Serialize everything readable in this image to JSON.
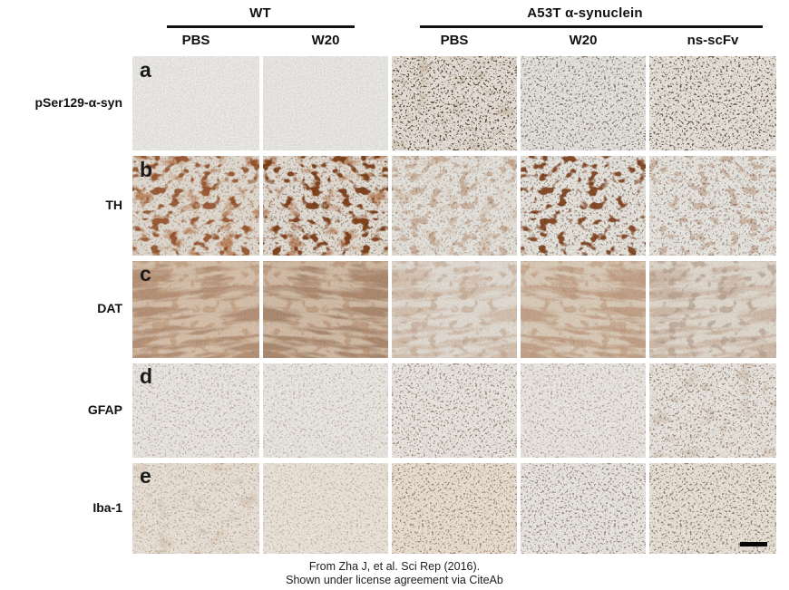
{
  "figure": {
    "groups": [
      {
        "label": "WT"
      },
      {
        "label": "A53T α-synuclein"
      }
    ],
    "column_labels": [
      "PBS",
      "W20",
      "PBS",
      "W20",
      "ns-scFv"
    ],
    "column_keys": [
      "wt-pbs",
      "wt-w20",
      "a53t-pbs",
      "a53t-w20",
      "a53t-ns-scfv"
    ],
    "stain_colors": {
      "dab_brown": "#8f4a20",
      "dark_brown": "#6d370f",
      "background_gray": "#d8d7d3",
      "tan": "#d9c3a8"
    },
    "rows": [
      {
        "letter": "a",
        "label": "pSer129-α-syn",
        "cells": [
          {
            "base": "#d8d7d3",
            "layers": [
              {
                "filter": "grain",
                "color": "#bdbab2",
                "opacity": 0.6
              }
            ]
          },
          {
            "base": "#d5d4d0",
            "layers": [
              {
                "filter": "grain",
                "color": "#bdbab2",
                "opacity": 0.6
              }
            ]
          },
          {
            "base": "#cdc1b4",
            "layers": [
              {
                "filter": "grain",
                "color": "#bdbab2",
                "opacity": 0.6
              },
              {
                "filter": "blobs",
                "color": "#b39a7e",
                "opacity": 0.3
              },
              {
                "filter": "specks",
                "color": "#43301f",
                "opacity": 0.8
              }
            ]
          },
          {
            "base": "#cfcac4",
            "layers": [
              {
                "filter": "grain",
                "color": "#bdbab2",
                "opacity": 0.6
              },
              {
                "filter": "specks",
                "color": "#3f332a",
                "opacity": 0.55
              }
            ]
          },
          {
            "base": "#d2c8ba",
            "layers": [
              {
                "filter": "grain",
                "color": "#bdbab2",
                "opacity": 0.6
              },
              {
                "filter": "specks",
                "color": "#3c2c1e",
                "opacity": 0.7
              }
            ]
          }
        ]
      },
      {
        "letter": "b",
        "label": "TH",
        "cells": [
          {
            "base": "#cdc2b3",
            "layers": [
              {
                "filter": "grain",
                "color": "#bdbab2",
                "opacity": 0.5
              },
              {
                "filter": "blobs",
                "color": "#aa5e2d",
                "opacity": 0.65
              },
              {
                "filter": "cells",
                "color": "#8f4a20",
                "opacity": 0.85
              },
              {
                "filter": "specks",
                "color": "#5a3a22",
                "opacity": 0.3
              }
            ]
          },
          {
            "base": "#cfc6b9",
            "layers": [
              {
                "filter": "grain",
                "color": "#bdbab2",
                "opacity": 0.5
              },
              {
                "filter": "blobs",
                "color": "#a65a2a",
                "opacity": 0.6
              },
              {
                "filter": "cells",
                "color": "#77360f",
                "opacity": 0.9
              },
              {
                "filter": "specks",
                "color": "#4a301c",
                "opacity": 0.4
              }
            ]
          },
          {
            "base": "#d3cec6",
            "layers": [
              {
                "filter": "grain",
                "color": "#bdbab2",
                "opacity": 0.55
              },
              {
                "filter": "blobs",
                "color": "#bb9068",
                "opacity": 0.3
              },
              {
                "filter": "cells",
                "color": "#9c653a",
                "opacity": 0.35
              },
              {
                "filter": "specks",
                "color": "#55402c",
                "opacity": 0.3
              }
            ]
          },
          {
            "base": "#d4d0c8",
            "layers": [
              {
                "filter": "grain",
                "color": "#bdbab2",
                "opacity": 0.55
              },
              {
                "filter": "cells",
                "color": "#7b3a16",
                "opacity": 0.9
              },
              {
                "filter": "specks",
                "color": "#46321f",
                "opacity": 0.45
              }
            ]
          },
          {
            "base": "#d7d4cd",
            "layers": [
              {
                "filter": "grain",
                "color": "#bdbab2",
                "opacity": 0.55
              },
              {
                "filter": "cells",
                "color": "#95552c",
                "opacity": 0.3
              },
              {
                "filter": "specks",
                "color": "#4a3420",
                "opacity": 0.4
              }
            ]
          }
        ]
      },
      {
        "letter": "c",
        "label": "DAT",
        "cells": [
          {
            "base": "#bf9d7d",
            "layers": [
              {
                "filter": "fibers",
                "color": "#7c3f16",
                "opacity": 0.8
              },
              {
                "filter": "cells",
                "color": "#93521f",
                "opacity": 0.55
              },
              {
                "filter": "grain",
                "color": "#bdbab2",
                "opacity": 0.4
              }
            ]
          },
          {
            "base": "#b89676",
            "layers": [
              {
                "filter": "fibers",
                "color": "#6d370f",
                "opacity": 0.85
              },
              {
                "filter": "cells",
                "color": "#8a4517",
                "opacity": 0.55
              },
              {
                "filter": "grain",
                "color": "#bdbab2",
                "opacity": 0.4
              }
            ]
          },
          {
            "base": "#cbc2b5",
            "layers": [
              {
                "filter": "fibers",
                "color": "#995b2e",
                "opacity": 0.5
              },
              {
                "filter": "cells",
                "color": "#84471e",
                "opacity": 0.5
              },
              {
                "filter": "grain",
                "color": "#bdbab2",
                "opacity": 0.5
              }
            ]
          },
          {
            "base": "#c2a98c",
            "layers": [
              {
                "filter": "fibers",
                "color": "#8d4b1c",
                "opacity": 0.75
              },
              {
                "filter": "cells",
                "color": "#8f4e1e",
                "opacity": 0.55
              },
              {
                "filter": "grain",
                "color": "#bdbab2",
                "opacity": 0.45
              }
            ]
          },
          {
            "base": "#c8bcab",
            "layers": [
              {
                "filter": "fibers",
                "color": "#8a5128",
                "opacity": 0.55
              },
              {
                "filter": "cells",
                "color": "#653415",
                "opacity": 0.55
              },
              {
                "filter": "grain",
                "color": "#bdbab2",
                "opacity": 0.5
              }
            ]
          }
        ]
      },
      {
        "letter": "d",
        "label": "GFAP",
        "cells": [
          {
            "base": "#dad7d2",
            "layers": [
              {
                "filter": "grain",
                "color": "#bdbab2",
                "opacity": 0.6
              },
              {
                "filter": "specks",
                "color": "#8a6a52",
                "opacity": 0.4
              }
            ]
          },
          {
            "base": "#dbd8d3",
            "layers": [
              {
                "filter": "grain",
                "color": "#bdbab2",
                "opacity": 0.6
              },
              {
                "filter": "specks",
                "color": "#8a6a52",
                "opacity": 0.35
              }
            ]
          },
          {
            "base": "#d8d4cd",
            "layers": [
              {
                "filter": "grain",
                "color": "#bdbab2",
                "opacity": 0.6
              },
              {
                "filter": "specks",
                "color": "#6b4e36",
                "opacity": 0.55
              }
            ]
          },
          {
            "base": "#dad6d0",
            "layers": [
              {
                "filter": "grain",
                "color": "#bdbab2",
                "opacity": 0.6
              },
              {
                "filter": "specks",
                "color": "#7a5a40",
                "opacity": 0.4
              }
            ]
          },
          {
            "base": "#d6d0c8",
            "layers": [
              {
                "filter": "grain",
                "color": "#bdbab2",
                "opacity": 0.6
              },
              {
                "filter": "blobs",
                "color": "#b49a7d",
                "opacity": 0.3
              },
              {
                "filter": "specks",
                "color": "#6b4c34",
                "opacity": 0.55
              }
            ]
          }
        ]
      },
      {
        "letter": "e",
        "label": "Iba-1",
        "cells": [
          {
            "base": "#d8c9b6",
            "layers": [
              {
                "filter": "grain",
                "color": "#bdbab2",
                "opacity": 0.6
              },
              {
                "filter": "blobs",
                "color": "#c9b29a",
                "opacity": 0.35
              },
              {
                "filter": "specks",
                "color": "#7a5a42",
                "opacity": 0.35
              }
            ]
          },
          {
            "base": "#dbcebd",
            "layers": [
              {
                "filter": "grain",
                "color": "#bdbab2",
                "opacity": 0.6
              },
              {
                "filter": "specks",
                "color": "#7d5d45",
                "opacity": 0.3
              }
            ]
          },
          {
            "base": "#d9c3a8",
            "layers": [
              {
                "filter": "grain",
                "color": "#bdbab2",
                "opacity": 0.6
              },
              {
                "filter": "specks",
                "color": "#5c3f26",
                "opacity": 0.5
              }
            ]
          },
          {
            "base": "#d8d3cb",
            "layers": [
              {
                "filter": "grain",
                "color": "#bdbab2",
                "opacity": 0.6
              },
              {
                "filter": "specks",
                "color": "#4c382a",
                "opacity": 0.5
              }
            ]
          },
          {
            "base": "#d7c9b8",
            "layers": [
              {
                "filter": "grain",
                "color": "#bdbab2",
                "opacity": 0.6
              },
              {
                "filter": "specks",
                "color": "#4c3423",
                "opacity": 0.55
              }
            ]
          }
        ]
      }
    ],
    "scale_bar": {
      "row_index": 4,
      "col_index": 4
    }
  },
  "footer": {
    "line1": "From Zha J, et al. Sci Rep (2016).",
    "line2": "Shown under license agreement via CiteAb"
  }
}
